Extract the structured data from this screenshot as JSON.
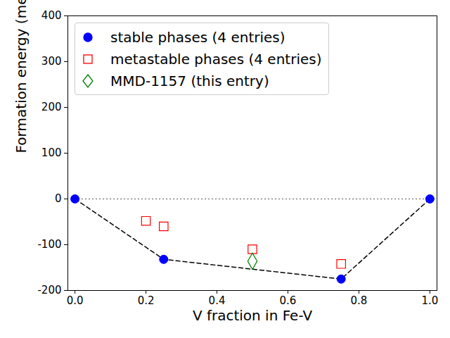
{
  "chart_data": {
    "type": "scatter",
    "x_label": "V fraction in Fe-V",
    "y_label": "Formation energy (meV/atom)",
    "xlim": [
      -0.02,
      1.02
    ],
    "ylim": [
      -200,
      400
    ],
    "xticks": [
      {
        "value": 0,
        "label": "0.0"
      },
      {
        "value": 0.2,
        "label": "0.2"
      },
      {
        "value": 0.4,
        "label": "0.4"
      },
      {
        "value": 0.6,
        "label": "0.6"
      },
      {
        "value": 0.8,
        "label": "0.8"
      },
      {
        "value": 1,
        "label": "1.0"
      }
    ],
    "yticks": [
      -200,
      -100,
      0,
      100,
      200,
      300,
      400
    ],
    "legend": "upper left",
    "series": [
      {
        "name": "stable phases (4 entries)",
        "color": "#0000ff",
        "marker": "circle",
        "x": [
          0,
          0.25,
          0.75,
          1
        ],
        "values": [
          0,
          -132,
          -175,
          0
        ]
      },
      {
        "name": "metastable phases (4 entries)",
        "color": "#ff0000",
        "marker": "square_open",
        "x": [
          0.2,
          0.25,
          0.5,
          0.75
        ],
        "values": [
          -48,
          -60,
          -110,
          -142
        ]
      },
      {
        "name": "MMD-1157 (this entry)",
        "color": "#008000",
        "marker": "diamond_open",
        "x": [
          0.5
        ],
        "values": [
          -136
        ]
      }
    ],
    "hull": {
      "color": "#000000",
      "line_style": "dashed",
      "x": [
        0,
        0.25,
        0.75,
        1
      ],
      "values": [
        0,
        -132,
        -175,
        0
      ]
    },
    "hlines": [
      {
        "y": 0,
        "xmin": 0,
        "xmax": 1,
        "color": "#808080",
        "line_style": "dotted"
      }
    ]
  }
}
